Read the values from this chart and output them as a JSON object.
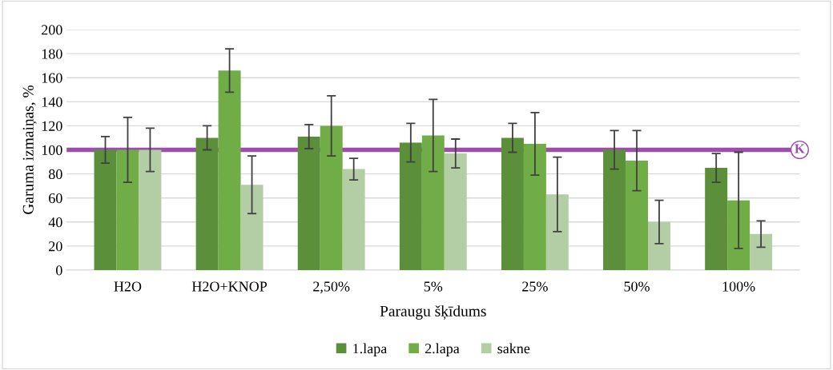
{
  "chart_data": {
    "type": "bar",
    "xlabel": "Paraugu šķīdums",
    "ylabel": "Garuma izmaiņas, %",
    "categories": [
      "H2O",
      "H2O+KNOP",
      "2,50%",
      "5%",
      "25%",
      "50%",
      "100%"
    ],
    "series": [
      {
        "name": "1.lapa",
        "color": "#5b8f39",
        "values": [
          100,
          110,
          111,
          106,
          110,
          100,
          85
        ],
        "errors": [
          11,
          10,
          10,
          16,
          12,
          16,
          12
        ]
      },
      {
        "name": "2.lapa",
        "color": "#70ad47",
        "values": [
          100,
          166,
          120,
          112,
          105,
          91,
          58
        ],
        "errors": [
          27,
          18,
          25,
          30,
          26,
          25,
          40
        ]
      },
      {
        "name": "sakne",
        "color": "#b3cea5",
        "values": [
          100,
          71,
          84,
          97,
          63,
          40,
          30
        ],
        "errors": [
          18,
          24,
          9,
          12,
          31,
          18,
          11
        ]
      }
    ],
    "ylim": [
      0,
      200
    ],
    "yticks": [
      0,
      20,
      40,
      60,
      80,
      100,
      120,
      140,
      160,
      180,
      200
    ],
    "ref_lines": [
      {
        "axis": "y",
        "value": 100,
        "label": "K",
        "color": "#9b4fa8"
      }
    ],
    "grid": "y",
    "legend": "bottom"
  }
}
